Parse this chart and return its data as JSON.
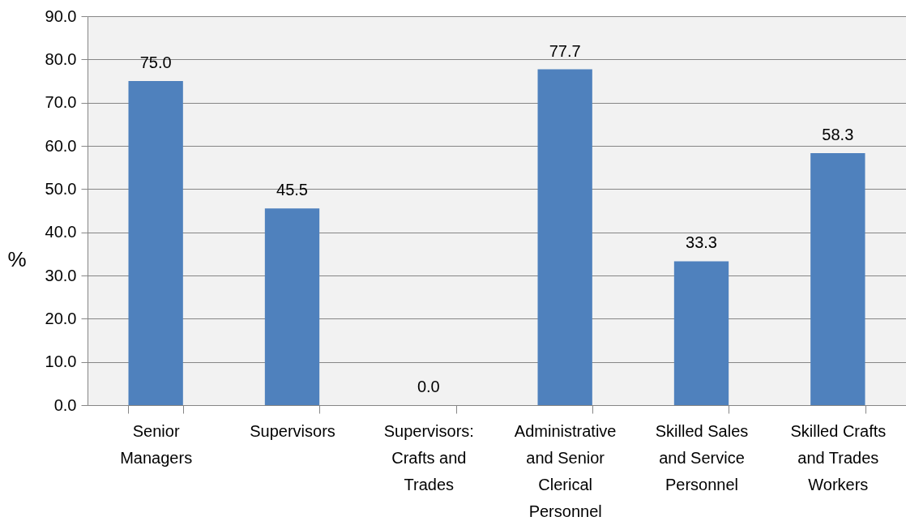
{
  "chart_data": {
    "type": "bar",
    "ylabel": "%",
    "categories": [
      "Senior Managers",
      "Supervisors",
      "Supervisors: Crafts and Trades",
      "Administrative and Senior Clerical Personnel",
      "Skilled Sales and Service Personnel",
      "Skilled Crafts and Trades Workers"
    ],
    "values": [
      75.0,
      45.5,
      0.0,
      77.7,
      33.3,
      58.3
    ],
    "value_labels": [
      "75.0",
      "45.5",
      "0.0",
      "77.7",
      "33.3",
      "58.3"
    ],
    "color": "#4f81bd",
    "ylim": [
      0,
      90
    ],
    "yticks": [
      {
        "value": 0,
        "label": "0.0"
      },
      {
        "value": 10,
        "label": "10.0"
      },
      {
        "value": 20,
        "label": "20.0"
      },
      {
        "value": 30,
        "label": "30.0"
      },
      {
        "value": 40,
        "label": "40.0"
      },
      {
        "value": 50,
        "label": "50.0"
      },
      {
        "value": 60,
        "label": "60.0"
      },
      {
        "value": 70,
        "label": "70.0"
      },
      {
        "value": 80,
        "label": "80.0"
      },
      {
        "value": 90,
        "label": "90.0"
      }
    ],
    "grid": "y"
  }
}
